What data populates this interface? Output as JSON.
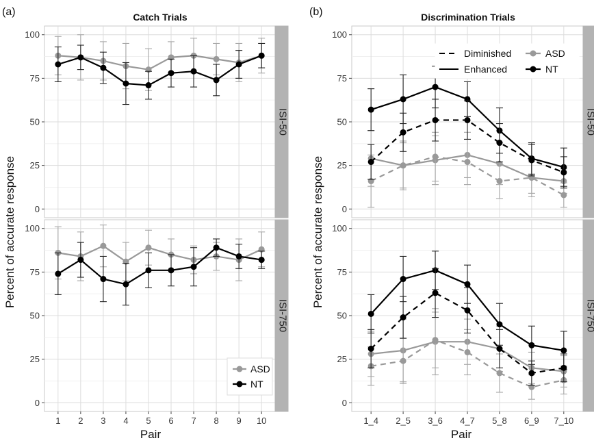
{
  "figure": {
    "ylabel": "Percent of accurate response",
    "xlabel": "Pair"
  },
  "chart_data": [
    {
      "type": "line",
      "panel_letter": "(a)",
      "title": "Catch Trials",
      "strips": [
        "ISI-50",
        "ISI-750"
      ],
      "x": [
        "1",
        "2",
        "3",
        "4",
        "5",
        "6",
        "7",
        "8",
        "9",
        "10"
      ],
      "ylim": [
        -5,
        105
      ],
      "yticks": [
        0,
        25,
        50,
        75,
        100
      ],
      "legend": {
        "entries": [
          "ASD",
          "NT"
        ],
        "position": "bottom-right of ISI-750 facet"
      },
      "facets": [
        {
          "strip": "ISI-50",
          "series": [
            {
              "name": "ASD",
              "color": "#999999",
              "linetype": "solid",
              "values": [
                88,
                87,
                85,
                82,
                80,
                87,
                88,
                86,
                84,
                88
              ],
              "error": [
                11,
                13,
                11,
                13,
                12,
                9,
                10,
                9,
                11,
                10
              ]
            },
            {
              "name": "NT",
              "color": "#000000",
              "linetype": "solid",
              "values": [
                83,
                87,
                81,
                72,
                71,
                78,
                79,
                74,
                83,
                88
              ],
              "error": [
                10,
                7,
                9,
                12,
                8,
                8,
                9,
                9,
                8,
                7
              ]
            }
          ]
        },
        {
          "strip": "ISI-750",
          "series": [
            {
              "name": "ASD",
              "color": "#999999",
              "linetype": "solid",
              "values": [
                86,
                84,
                90,
                81,
                89,
                85,
                82,
                84,
                82,
                88
              ],
              "error": [
                15,
                14,
                12,
                11,
                10,
                9,
                8,
                8,
                12,
                10
              ]
            },
            {
              "name": "NT",
              "color": "#000000",
              "linetype": "solid",
              "values": [
                74,
                82,
                71,
                68,
                76,
                76,
                78,
                89,
                84,
                82
              ],
              "error": [
                12,
                10,
                13,
                12,
                10,
                9,
                11,
                5,
                7,
                5
              ]
            }
          ]
        }
      ]
    },
    {
      "type": "line",
      "panel_letter": "(b)",
      "title": "Discrimination Trials",
      "strips": [
        "ISI-50",
        "ISI-750"
      ],
      "x": [
        "1_4",
        "2_5",
        "3_6",
        "4_7",
        "5_8",
        "6_9",
        "7_10"
      ],
      "ylim": [
        -5,
        105
      ],
      "yticks": [
        0,
        25,
        50,
        75,
        100
      ],
      "legend": {
        "linetype_entries": [
          "Diminished",
          "Enhanced"
        ],
        "group_entries": [
          "ASD",
          "NT"
        ],
        "position": "top of ISI-50 facet"
      },
      "facets": [
        {
          "strip": "ISI-50",
          "series": [
            {
              "name": "NT Enhanced",
              "color": "#000000",
              "linetype": "solid",
              "values": [
                57,
                63,
                70,
                63,
                45,
                29,
                24
              ],
              "error": [
                12,
                14,
                12,
                10,
                13,
                9,
                11
              ]
            },
            {
              "name": "NT Diminished",
              "color": "#000000",
              "linetype": "dashed",
              "values": [
                27,
                44,
                51,
                51,
                38,
                28,
                21
              ],
              "error": [
                10,
                11,
                12,
                11,
                11,
                9,
                9
              ]
            },
            {
              "name": "ASD Enhanced",
              "color": "#999999",
              "linetype": "solid",
              "values": [
                29,
                25,
                28,
                31,
                26,
                18,
                16
              ],
              "error": [
                16,
                13,
                14,
                13,
                12,
                11,
                7
              ]
            },
            {
              "name": "ASD Diminished",
              "color": "#999999",
              "linetype": "dashed",
              "values": [
                16,
                25,
                30,
                27,
                16,
                18,
                8
              ],
              "error": [
                15,
                14,
                14,
                13,
                10,
                9,
                7
              ]
            }
          ]
        },
        {
          "strip": "ISI-750",
          "series": [
            {
              "name": "NT Enhanced",
              "color": "#000000",
              "linetype": "solid",
              "values": [
                51,
                71,
                76,
                68,
                45,
                33,
                30
              ],
              "error": [
                11,
                13,
                11,
                11,
                12,
                11,
                11
              ]
            },
            {
              "name": "NT Diminished",
              "color": "#000000",
              "linetype": "dashed",
              "values": [
                31,
                49,
                63,
                53,
                31,
                17,
                20
              ],
              "error": [
                11,
                12,
                14,
                13,
                11,
                7,
                8
              ]
            },
            {
              "name": "ASD Enhanced",
              "color": "#999999",
              "linetype": "solid",
              "values": [
                28,
                30,
                35,
                35,
                31,
                20,
                18
              ],
              "error": [
                13,
                18,
                19,
                13,
                13,
                9,
                9
              ]
            },
            {
              "name": "ASD Diminished",
              "color": "#999999",
              "linetype": "dashed",
              "values": [
                21,
                24,
                36,
                29,
                17,
                9,
                13
              ],
              "error": [
                11,
                13,
                16,
                13,
                11,
                7,
                8
              ]
            }
          ]
        }
      ]
    }
  ]
}
